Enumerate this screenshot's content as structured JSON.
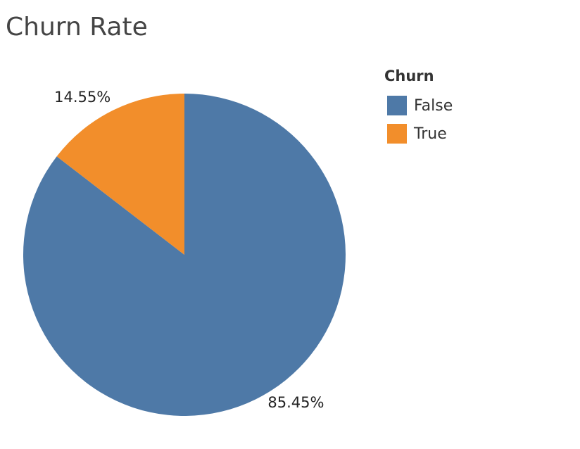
{
  "chart_data": {
    "type": "pie",
    "title": "Churn Rate",
    "legend_title": "Churn",
    "legend_position": "top-right",
    "slices": [
      {
        "category": "False",
        "value": 85.45,
        "label": "85.45%",
        "color": "#4e79a7"
      },
      {
        "category": "True",
        "value": 14.55,
        "label": "14.55%",
        "color": "#f28e2b"
      }
    ]
  }
}
